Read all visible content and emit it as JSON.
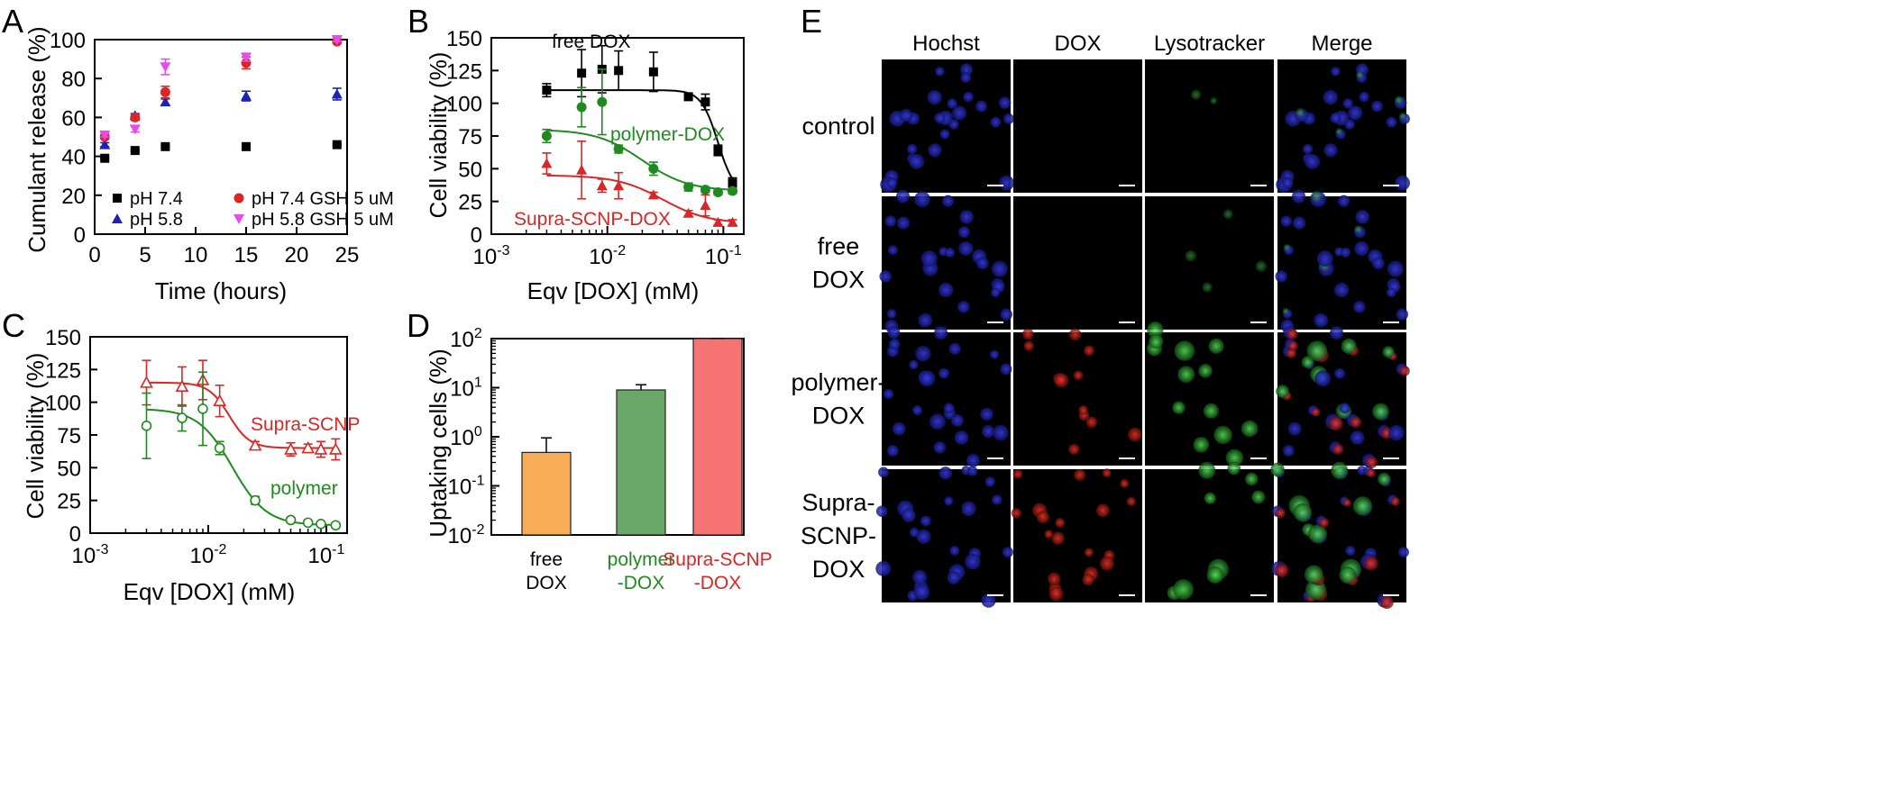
{
  "colors": {
    "black": "#000000",
    "blue": "#1a23b5",
    "red": "#d92626",
    "magenta": "#e84ce8",
    "green": "#1f8a1f",
    "orange": "#f8ac56",
    "bar_green": "#6aa86a",
    "bar_red": "#f57372"
  },
  "panels": {
    "A": "A",
    "B": "B",
    "C": "C",
    "D": "D",
    "E": "E"
  },
  "chart_data": [
    {
      "panel": "A",
      "type": "scatter",
      "xlabel": "Time (hours)",
      "ylabel": "Cumulant release (%)",
      "xlim": [
        0,
        25
      ],
      "ylim": [
        0,
        100
      ],
      "xticks": [
        "0",
        "5",
        "10",
        "15",
        "20",
        "25"
      ],
      "yticks": [
        "0",
        "20",
        "40",
        "60",
        "80",
        "100"
      ],
      "legend_position": "bottom-right",
      "series": [
        {
          "name": "pH 7.4",
          "marker": "square",
          "color": "#000000",
          "x": [
            1,
            4,
            7,
            15,
            24
          ],
          "y": [
            39,
            43,
            45,
            45,
            46
          ],
          "err": [
            0.5,
            0.5,
            0.5,
            0.5,
            0.5
          ]
        },
        {
          "name": "pH 5.8",
          "marker": "triangle",
          "color": "#1a23b5",
          "x": [
            1,
            4,
            7,
            15,
            24
          ],
          "y": [
            46,
            61,
            68,
            71,
            72
          ],
          "err": [
            1,
            1,
            1.5,
            2.5,
            3
          ]
        },
        {
          "name": "pH 7.4 GSH 5 uM",
          "marker": "circle",
          "color": "#d92626",
          "x": [
            1,
            4,
            7,
            15,
            24
          ],
          "y": [
            50,
            60,
            73,
            88,
            99
          ],
          "err": [
            1,
            1.5,
            3,
            3,
            1
          ]
        },
        {
          "name": "pH 5.8 GSH 5 uM",
          "marker": "triangle-down",
          "color": "#e84ce8",
          "x": [
            1,
            4,
            7,
            15,
            24
          ],
          "y": [
            51,
            54,
            86,
            91,
            100
          ],
          "err": [
            1,
            1.5,
            4,
            2,
            1
          ]
        }
      ]
    },
    {
      "panel": "B",
      "type": "scatter",
      "xlabel": "Eqv [DOX] (mM)",
      "ylabel": "Cell viability (%)",
      "xscale": "log",
      "xlim": [
        0.001,
        0.15
      ],
      "ylim": [
        0,
        150
      ],
      "xticks": [
        "10^-3",
        "10^-2",
        "10^-1"
      ],
      "yticks": [
        "0",
        "25",
        "50",
        "75",
        "100",
        "125",
        "150"
      ],
      "series": [
        {
          "name": "free DOX",
          "color": "#000000",
          "marker": "square",
          "x": [
            0.003,
            0.006,
            0.009,
            0.0125,
            0.025,
            0.05,
            0.07,
            0.09,
            0.12
          ],
          "y": [
            110,
            123,
            126,
            125,
            124,
            105,
            101,
            64,
            39
          ],
          "err": [
            5,
            18,
            18,
            15,
            15,
            2,
            6,
            4,
            4
          ],
          "fit": {
            "top": 110,
            "bottom": 30,
            "ec50": 0.09,
            "hill": 6
          }
        },
        {
          "name": "polymer-DOX",
          "color": "#1f8a1f",
          "marker": "circle",
          "x": [
            0.003,
            0.006,
            0.009,
            0.0125,
            0.025,
            0.05,
            0.07,
            0.09,
            0.12
          ],
          "y": [
            75,
            97,
            101,
            65,
            50,
            36,
            34,
            32,
            33
          ],
          "err": [
            5,
            15,
            25,
            3,
            5,
            3,
            2,
            2,
            2
          ],
          "fit": {
            "top": 80,
            "bottom": 33,
            "ec50": 0.02,
            "hill": 2.2
          }
        },
        {
          "name": "Supra-SCNP-DOX",
          "color": "#d92626",
          "marker": "triangle",
          "x": [
            0.003,
            0.006,
            0.009,
            0.0125,
            0.025,
            0.05,
            0.07,
            0.09,
            0.12
          ],
          "y": [
            54,
            49,
            37,
            37,
            30,
            16,
            22,
            9,
            9
          ],
          "err": [
            8,
            22,
            5,
            10,
            2,
            2,
            8,
            2,
            2
          ],
          "fit": {
            "top": 45,
            "bottom": 8,
            "ec50": 0.03,
            "hill": 2.2
          }
        }
      ],
      "annotations": [
        "free DOX",
        "polymer-DOX",
        "Supra-SCNP-DOX"
      ]
    },
    {
      "panel": "C",
      "type": "scatter",
      "xlabel": "Eqv [DOX] (mM)",
      "ylabel": "Cell viability (%)",
      "xscale": "log",
      "xlim": [
        0.001,
        0.15
      ],
      "ylim": [
        0,
        150
      ],
      "xticks": [
        "10^-3",
        "10^-2",
        "10^-1"
      ],
      "yticks": [
        "0",
        "25",
        "50",
        "75",
        "100",
        "125",
        "150"
      ],
      "series": [
        {
          "name": "Supra-SCNP",
          "color": "#d92626",
          "marker": "triangle-open",
          "x": [
            0.003,
            0.006,
            0.009,
            0.0125,
            0.025,
            0.05,
            0.07,
            0.09,
            0.12
          ],
          "y": [
            115,
            112,
            117,
            101,
            67,
            64,
            65,
            64,
            64
          ],
          "err": [
            17,
            15,
            15,
            12,
            3,
            5,
            3,
            6,
            8
          ],
          "fit": {
            "top": 115,
            "bottom": 65,
            "ec50": 0.015,
            "hill": 5
          }
        },
        {
          "name": "polymer",
          "color": "#1f8a1f",
          "marker": "circle-open",
          "x": [
            0.003,
            0.006,
            0.009,
            0.0125,
            0.025,
            0.05,
            0.07,
            0.09,
            0.12
          ],
          "y": [
            82,
            88,
            95,
            65,
            25,
            10,
            8,
            7,
            6
          ],
          "err": [
            25,
            10,
            28,
            5,
            3,
            2,
            1,
            1,
            1
          ],
          "fit": {
            "top": 95,
            "bottom": 6,
            "ec50": 0.016,
            "hill": 3
          }
        }
      ],
      "annotations": [
        "Supra-SCNP",
        "polymer"
      ]
    },
    {
      "panel": "D",
      "type": "bar",
      "ylabel": "Uptaking cells (%)",
      "yscale": "log",
      "ylim": [
        0.01,
        100
      ],
      "yticks": [
        "10^-2",
        "10^-1",
        "10^0",
        "10^1",
        "10^2"
      ],
      "categories": [
        "free\nDOX",
        "polymer\n-DOX",
        "Supra-SCNP\n-DOX"
      ],
      "values": [
        0.48,
        9.0,
        100
      ],
      "err_upper": [
        0.95,
        11.5,
        101
      ],
      "colors": [
        "#f8ac56",
        "#6aa86a",
        "#f57372"
      ]
    }
  ],
  "imaging": {
    "columns": [
      "Hochst",
      "DOX",
      "Lysotracker",
      "Merge"
    ],
    "rows": [
      {
        "label_lines": [
          "control"
        ]
      },
      {
        "label_lines": [
          "free",
          "DOX"
        ]
      },
      {
        "label_lines": [
          "polymer-",
          "DOX"
        ]
      },
      {
        "label_lines": [
          "Supra-",
          "SCNP-",
          "DOX"
        ]
      }
    ]
  }
}
